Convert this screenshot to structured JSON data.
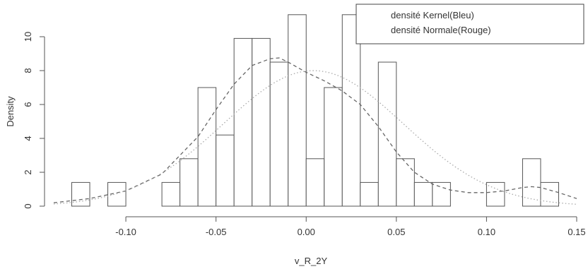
{
  "chart_data": {
    "type": "bar",
    "subtype": "histogram-with-density-curves",
    "xlabel": "v_R_2Y",
    "ylabel": "Density",
    "xlim": [
      -0.14,
      0.15
    ],
    "ylim": [
      0,
      11.5
    ],
    "x_ticks": [
      "-0.10",
      "-0.05",
      "0.00",
      "0.05",
      "0.10",
      "0.15"
    ],
    "y_ticks": [
      "0",
      "2",
      "4",
      "6",
      "8",
      "10"
    ],
    "bin_width": 0.01,
    "bins": [
      {
        "start": -0.13,
        "end": -0.12,
        "density": 1.4
      },
      {
        "start": -0.12,
        "end": -0.11,
        "density": 0
      },
      {
        "start": -0.11,
        "end": -0.1,
        "density": 1.4
      },
      {
        "start": -0.1,
        "end": -0.09,
        "density": 0
      },
      {
        "start": -0.09,
        "end": -0.08,
        "density": 0
      },
      {
        "start": -0.08,
        "end": -0.07,
        "density": 1.4
      },
      {
        "start": -0.07,
        "end": -0.06,
        "density": 2.8
      },
      {
        "start": -0.06,
        "end": -0.05,
        "density": 7.0
      },
      {
        "start": -0.05,
        "end": -0.04,
        "density": 4.2
      },
      {
        "start": -0.04,
        "end": -0.03,
        "density": 9.9
      },
      {
        "start": -0.03,
        "end": -0.02,
        "density": 9.9
      },
      {
        "start": -0.02,
        "end": -0.01,
        "density": 8.5
      },
      {
        "start": -0.01,
        "end": 0.0,
        "density": 11.3
      },
      {
        "start": 0.0,
        "end": 0.01,
        "density": 2.8
      },
      {
        "start": 0.01,
        "end": 0.02,
        "density": 7.0
      },
      {
        "start": 0.02,
        "end": 0.03,
        "density": 11.3
      },
      {
        "start": 0.03,
        "end": 0.04,
        "density": 1.4
      },
      {
        "start": 0.04,
        "end": 0.05,
        "density": 8.5
      },
      {
        "start": 0.05,
        "end": 0.06,
        "density": 2.8
      },
      {
        "start": 0.06,
        "end": 0.07,
        "density": 1.4
      },
      {
        "start": 0.07,
        "end": 0.08,
        "density": 1.4
      },
      {
        "start": 0.08,
        "end": 0.09,
        "density": 0
      },
      {
        "start": 0.09,
        "end": 0.1,
        "density": 0
      },
      {
        "start": 0.1,
        "end": 0.11,
        "density": 1.4
      },
      {
        "start": 0.11,
        "end": 0.12,
        "density": 0
      },
      {
        "start": 0.12,
        "end": 0.13,
        "density": 2.8
      },
      {
        "start": 0.13,
        "end": 0.14,
        "density": 1.4
      }
    ],
    "series": [
      {
        "name": "densité Kernel(Bleu)",
        "style": "dashed",
        "color": "#666666",
        "x": [
          -0.14,
          -0.12,
          -0.1,
          -0.08,
          -0.06,
          -0.05,
          -0.04,
          -0.03,
          -0.02,
          -0.015,
          -0.01,
          0.0,
          0.01,
          0.02,
          0.03,
          0.04,
          0.05,
          0.06,
          0.07,
          0.08,
          0.09,
          0.1,
          0.11,
          0.12,
          0.125,
          0.13,
          0.14,
          0.15
        ],
        "y": [
          0.2,
          0.45,
          0.9,
          1.9,
          4.1,
          5.7,
          7.2,
          8.3,
          8.7,
          8.75,
          8.5,
          7.9,
          7.4,
          6.8,
          6.0,
          4.7,
          3.2,
          2.0,
          1.3,
          0.95,
          0.8,
          0.8,
          0.9,
          1.1,
          1.15,
          1.1,
          0.8,
          0.45
        ]
      },
      {
        "name": "densité Normale(Rouge)",
        "style": "dotted",
        "color": "#aaaaaa",
        "mean": 0.004,
        "sd": 0.05,
        "peak": 8.0
      }
    ],
    "legend": {
      "position": "top-right",
      "entries": [
        "densité Kernel(Bleu)",
        "densité Normale(Rouge)"
      ]
    },
    "grid": false
  }
}
